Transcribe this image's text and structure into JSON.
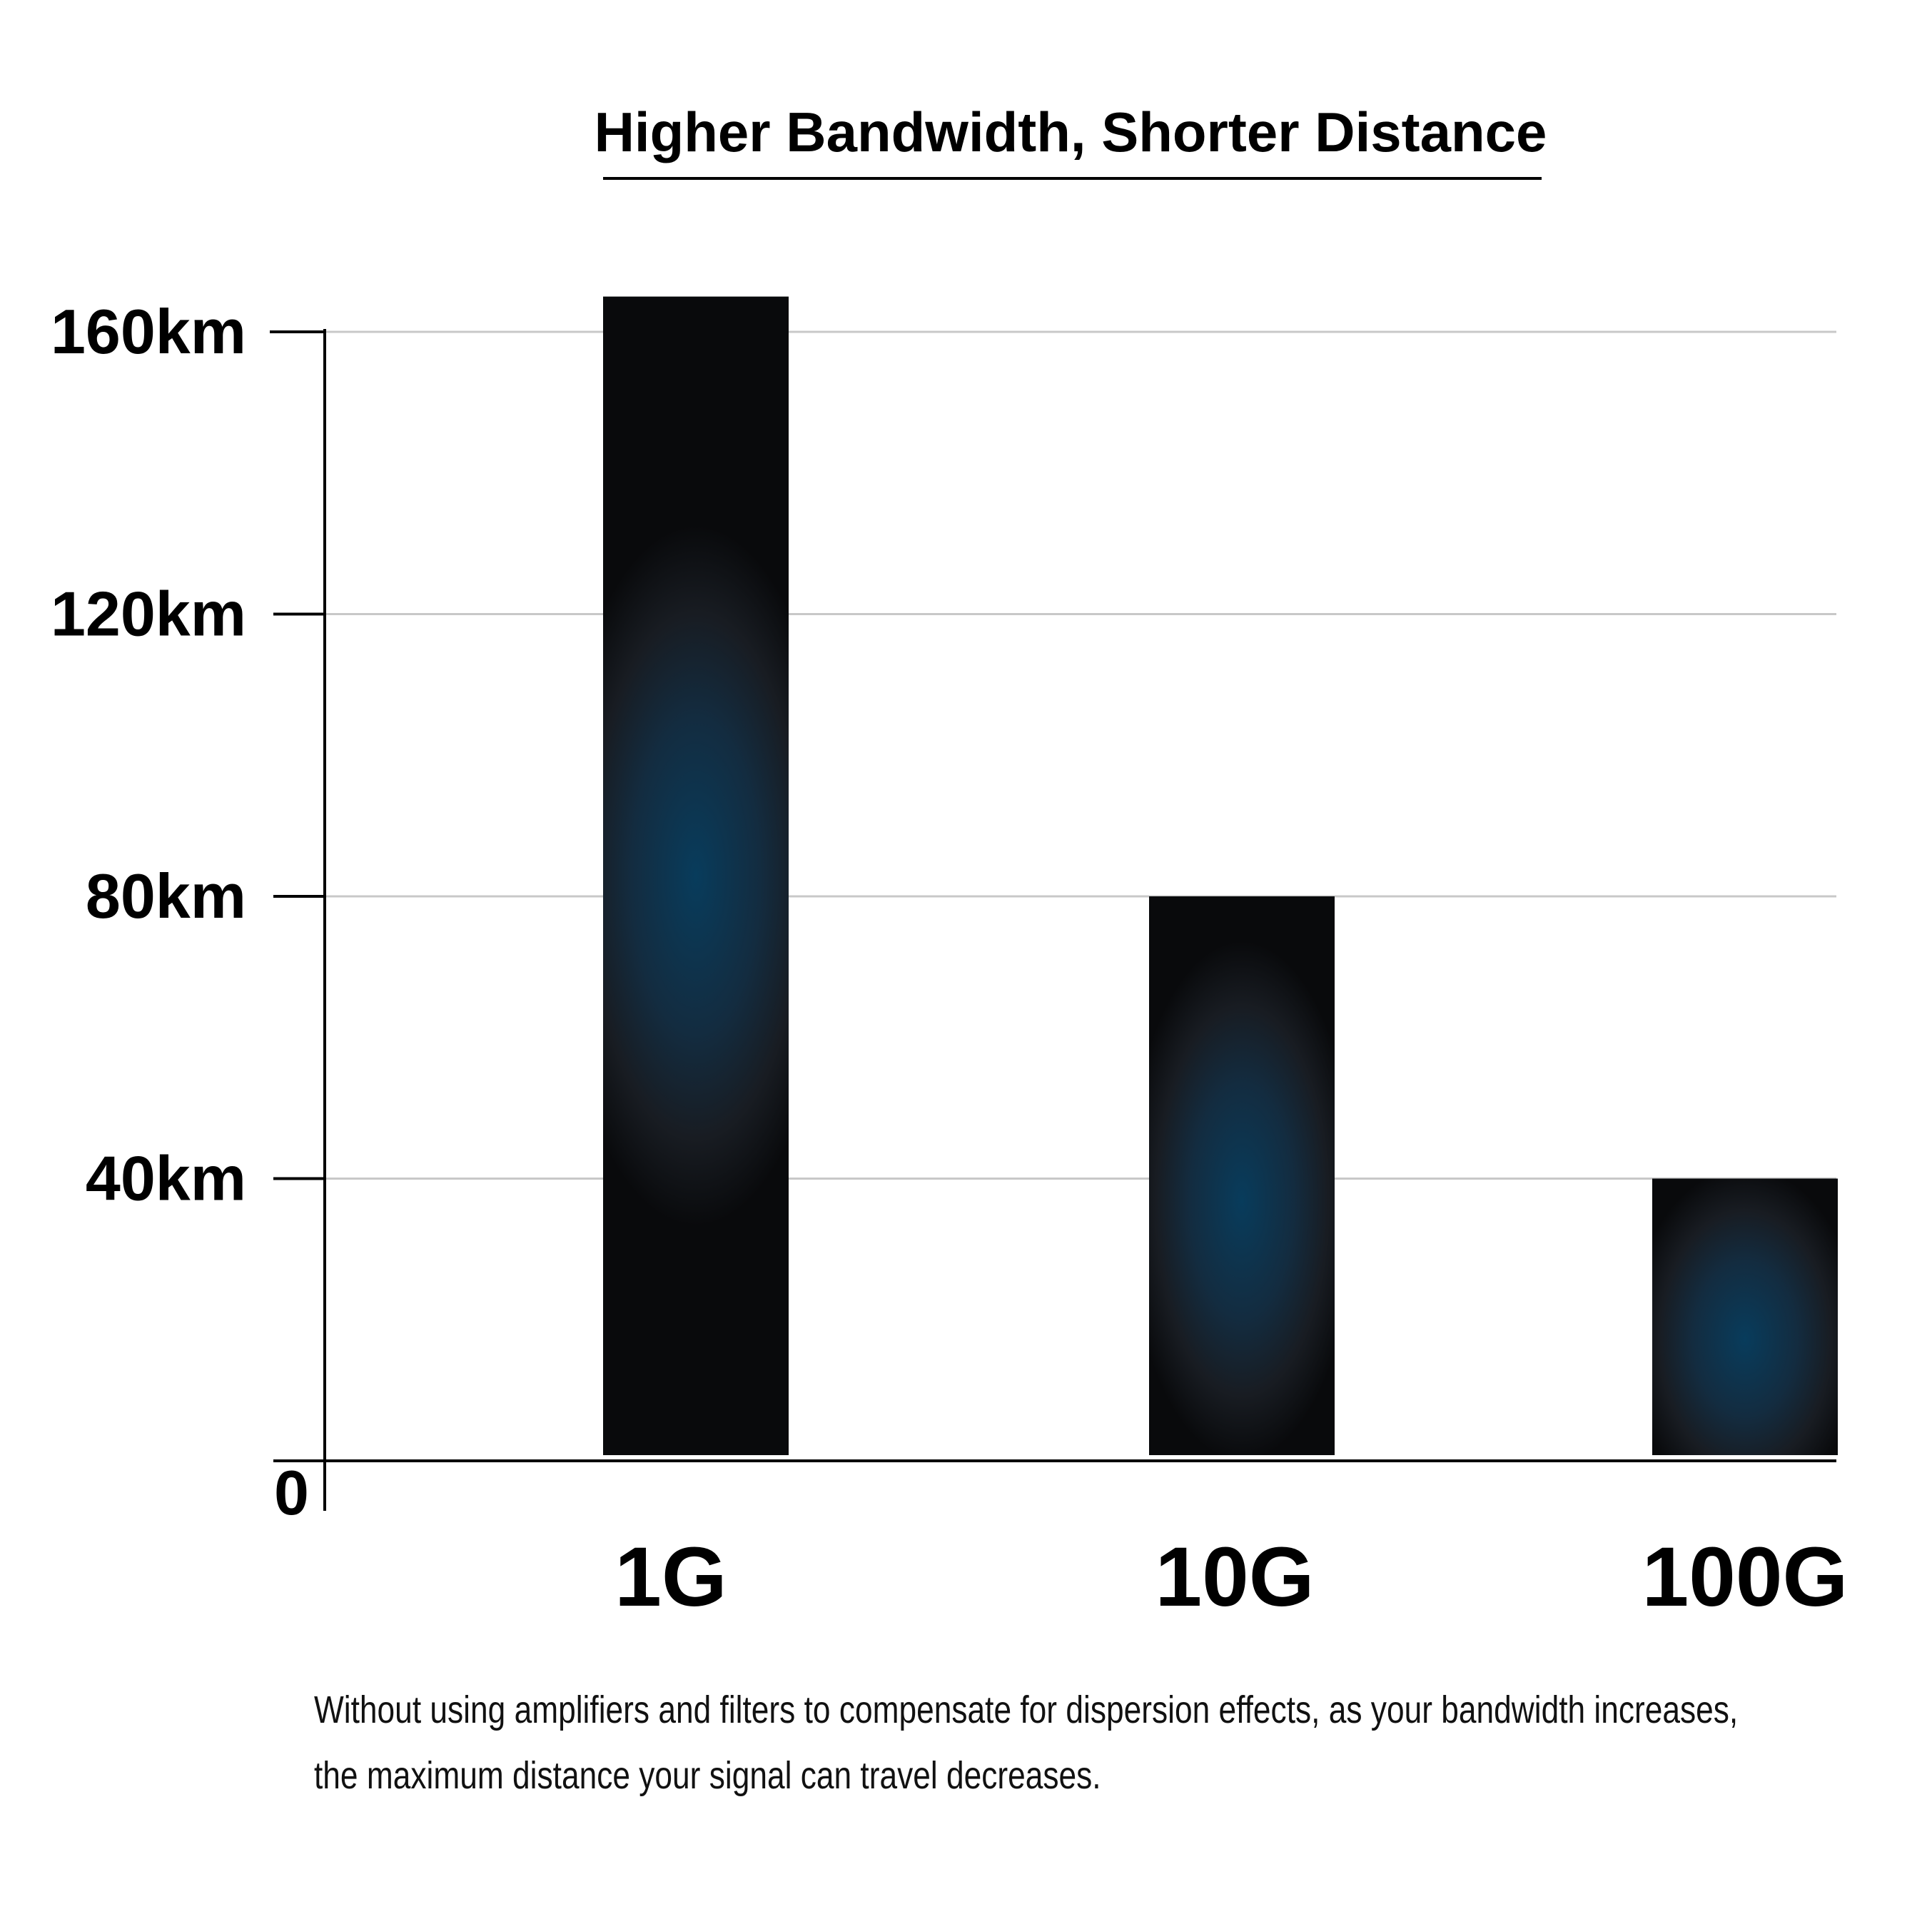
{
  "chart_data": {
    "type": "bar",
    "title": "Higher Bandwidth, Shorter Distance",
    "categories": [
      "1G",
      "10G",
      "100G"
    ],
    "values": [
      165,
      80,
      40
    ],
    "ylim": [
      0,
      160
    ],
    "yticks": [
      0,
      40,
      80,
      120,
      160
    ],
    "ytick_labels": [
      "0",
      "40km",
      "80km",
      "120km",
      "160km"
    ],
    "xlabel": "",
    "ylabel": "",
    "grid": true,
    "legend": "none",
    "colors": {
      "bar_dark": "#090a0c",
      "bar_glow": "#083c5c",
      "grid": "#c8c8c8",
      "axis": "#000000"
    }
  },
  "caption": {
    "line1": "Without using amplifiers and filters to compensate for dispersion effects, as your bandwidth increases,",
    "line2": "the maximum distance your signal can travel decreases."
  }
}
